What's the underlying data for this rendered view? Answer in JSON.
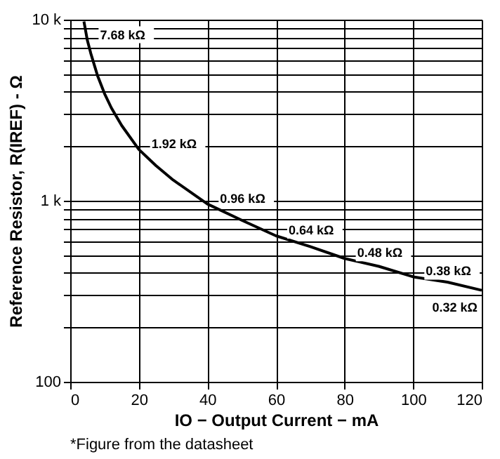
{
  "chart_data": {
    "type": "line",
    "log": "y",
    "grid": true,
    "marker": "none",
    "line_style": "solid",
    "legend": false,
    "xlabel": "IO − Output Current − mA",
    "ylabel": "Reference Resistor, R(IREF) - Ω",
    "x": [
      4,
      5,
      6,
      8,
      10,
      12,
      15,
      20,
      25,
      30,
      40,
      50,
      60,
      70,
      80,
      90,
      100,
      110,
      120
    ],
    "series": [
      {
        "color": "#000000",
        "values": [
          9765,
          7680,
          6510,
          4883,
          3906,
          3255,
          2604,
          1920,
          1562,
          1302,
          960,
          781,
          640,
          558,
          480,
          434,
          380,
          355,
          320
        ]
      }
    ],
    "xlim": [
      0,
      120
    ],
    "xticks": [
      0,
      20,
      40,
      60,
      80,
      100,
      120
    ],
    "ylim": [
      100,
      10000
    ],
    "yticks": [
      {
        "value": 100,
        "label": "100"
      },
      {
        "value": 200,
        "label": null
      },
      {
        "value": 300,
        "label": null
      },
      {
        "value": 400,
        "label": null
      },
      {
        "value": 500,
        "label": null
      },
      {
        "value": 600,
        "label": null
      },
      {
        "value": 700,
        "label": null
      },
      {
        "value": 800,
        "label": null
      },
      {
        "value": 900,
        "label": null
      },
      {
        "value": 1000,
        "label": "1 k"
      },
      {
        "value": 2000,
        "label": null
      },
      {
        "value": 3000,
        "label": null
      },
      {
        "value": 4000,
        "label": null
      },
      {
        "value": 5000,
        "label": null
      },
      {
        "value": 6000,
        "label": null
      },
      {
        "value": 7000,
        "label": null
      },
      {
        "value": 8000,
        "label": null
      },
      {
        "value": 9000,
        "label": null
      },
      {
        "value": 10000,
        "label": "10 k"
      }
    ],
    "annotations": [
      {
        "text": "7.68 kΩ",
        "x": 5,
        "y": 7680
      },
      {
        "text": "1.92 kΩ",
        "x": 20,
        "y": 1920
      },
      {
        "text": "0.96 kΩ",
        "x": 40,
        "y": 960
      },
      {
        "text": "0.64 kΩ",
        "x": 60,
        "y": 640
      },
      {
        "text": "0.48 kΩ",
        "x": 80,
        "y": 480
      },
      {
        "text": "0.38 kΩ",
        "x": 100,
        "y": 380
      },
      {
        "text": "0.32 kΩ",
        "x": 120,
        "y": 320
      },
      "*Figure from the datasheet"
    ]
  }
}
